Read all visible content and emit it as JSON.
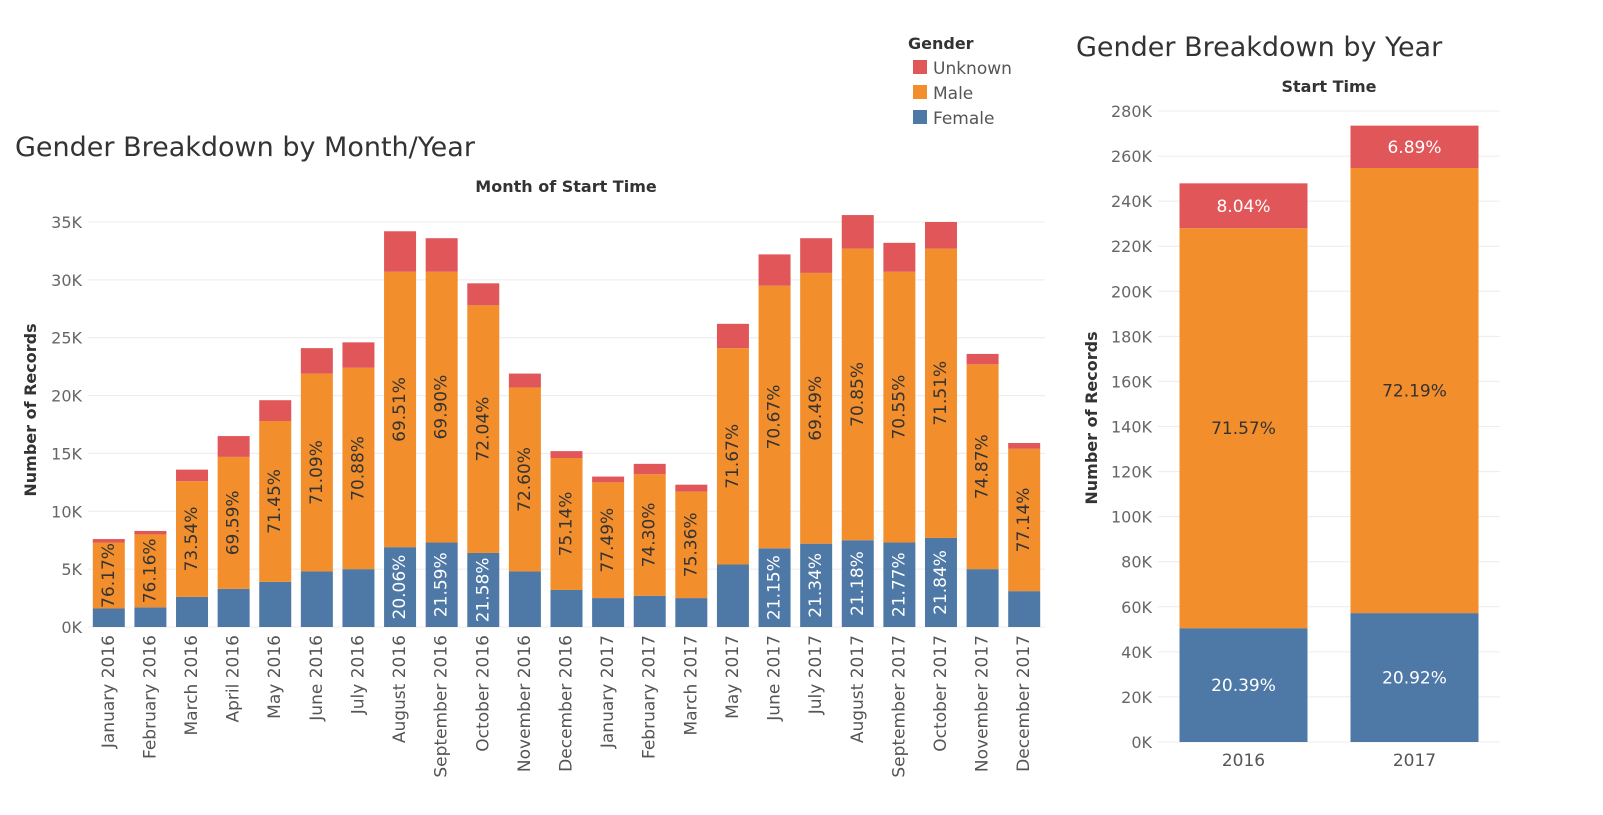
{
  "colors": {
    "Unknown": "#e15759",
    "Male": "#f28e2b",
    "Female": "#4e79a7"
  },
  "legend": {
    "title": "Gender",
    "items": [
      "Unknown",
      "Male",
      "Female"
    ]
  },
  "chart_data": [
    {
      "type": "bar",
      "stacked": true,
      "title": "Gender Breakdown by Month/Year",
      "xlabel": "Month of Start Time",
      "ylabel": "Number of Records",
      "ylim": [
        0,
        35000
      ],
      "yticks": [
        "0K",
        "5K",
        "10K",
        "15K",
        "20K",
        "25K",
        "30K",
        "35K"
      ],
      "categories": [
        "January 2016",
        "February 2016",
        "March 2016",
        "April 2016",
        "May 2016",
        "June 2016",
        "July 2016",
        "August 2016",
        "September 2016",
        "October 2016",
        "November 2016",
        "December 2016",
        "January 2017",
        "February 2017",
        "March 2017",
        "May 2017",
        "June 2017",
        "July 2017",
        "August 2017",
        "September 2017",
        "October 2017",
        "November 2017",
        "December 2017"
      ],
      "series": [
        {
          "name": "Female",
          "values": [
            1600,
            1700,
            2600,
            3300,
            3900,
            4800,
            5000,
            6900,
            7300,
            6400,
            4800,
            3200,
            2500,
            2700,
            2500,
            5400,
            6800,
            7200,
            7500,
            7300,
            7700,
            5000,
            3100
          ]
        },
        {
          "name": "Male",
          "values": [
            5700,
            6300,
            10000,
            11400,
            13900,
            17100,
            17400,
            23800,
            23400,
            21400,
            15900,
            11400,
            10000,
            10500,
            9200,
            18700,
            22700,
            23400,
            25200,
            23400,
            25000,
            17700,
            12300
          ]
        },
        {
          "name": "Unknown",
          "values": [
            300,
            300,
            1000,
            1800,
            1800,
            2200,
            2200,
            3500,
            2900,
            1900,
            1200,
            600,
            500,
            900,
            600,
            2100,
            2700,
            3000,
            2900,
            2500,
            2300,
            900,
            500
          ]
        }
      ],
      "labels": {
        "Male": [
          "76.17%",
          "76.16%",
          "73.54%",
          "69.59%",
          "71.45%",
          "71.09%",
          "70.88%",
          "69.51%",
          "69.90%",
          "72.04%",
          "72.60%",
          "75.14%",
          "77.49%",
          "74.30%",
          "75.36%",
          "71.67%",
          "70.67%",
          "69.49%",
          "70.85%",
          "70.55%",
          "71.51%",
          "74.87%",
          "77.14%"
        ],
        "Female": [
          "",
          "",
          "",
          "",
          "",
          "",
          "",
          "20.06%",
          "21.59%",
          "21.58%",
          "",
          "",
          "",
          "",
          "",
          "",
          "21.15%",
          "21.34%",
          "21.18%",
          "21.77%",
          "21.84%",
          "",
          ""
        ]
      }
    },
    {
      "type": "bar",
      "stacked": true,
      "title": "Gender Breakdown by Year",
      "xlabel": "Start Time",
      "ylabel": "Number of Records",
      "ylim": [
        0,
        280000
      ],
      "yticks": [
        "0K",
        "20K",
        "40K",
        "60K",
        "80K",
        "100K",
        "120K",
        "140K",
        "160K",
        "180K",
        "200K",
        "220K",
        "240K",
        "260K",
        "280K"
      ],
      "categories": [
        "2016",
        "2017"
      ],
      "series": [
        {
          "name": "Female",
          "values": [
            50500,
            57200
          ]
        },
        {
          "name": "Male",
          "values": [
            177500,
            197500
          ]
        },
        {
          "name": "Unknown",
          "values": [
            19900,
            18800
          ]
        }
      ],
      "labels": {
        "Female": [
          "20.39%",
          "20.92%"
        ],
        "Male": [
          "71.57%",
          "72.19%"
        ],
        "Unknown": [
          "8.04%",
          "6.89%"
        ]
      }
    }
  ]
}
